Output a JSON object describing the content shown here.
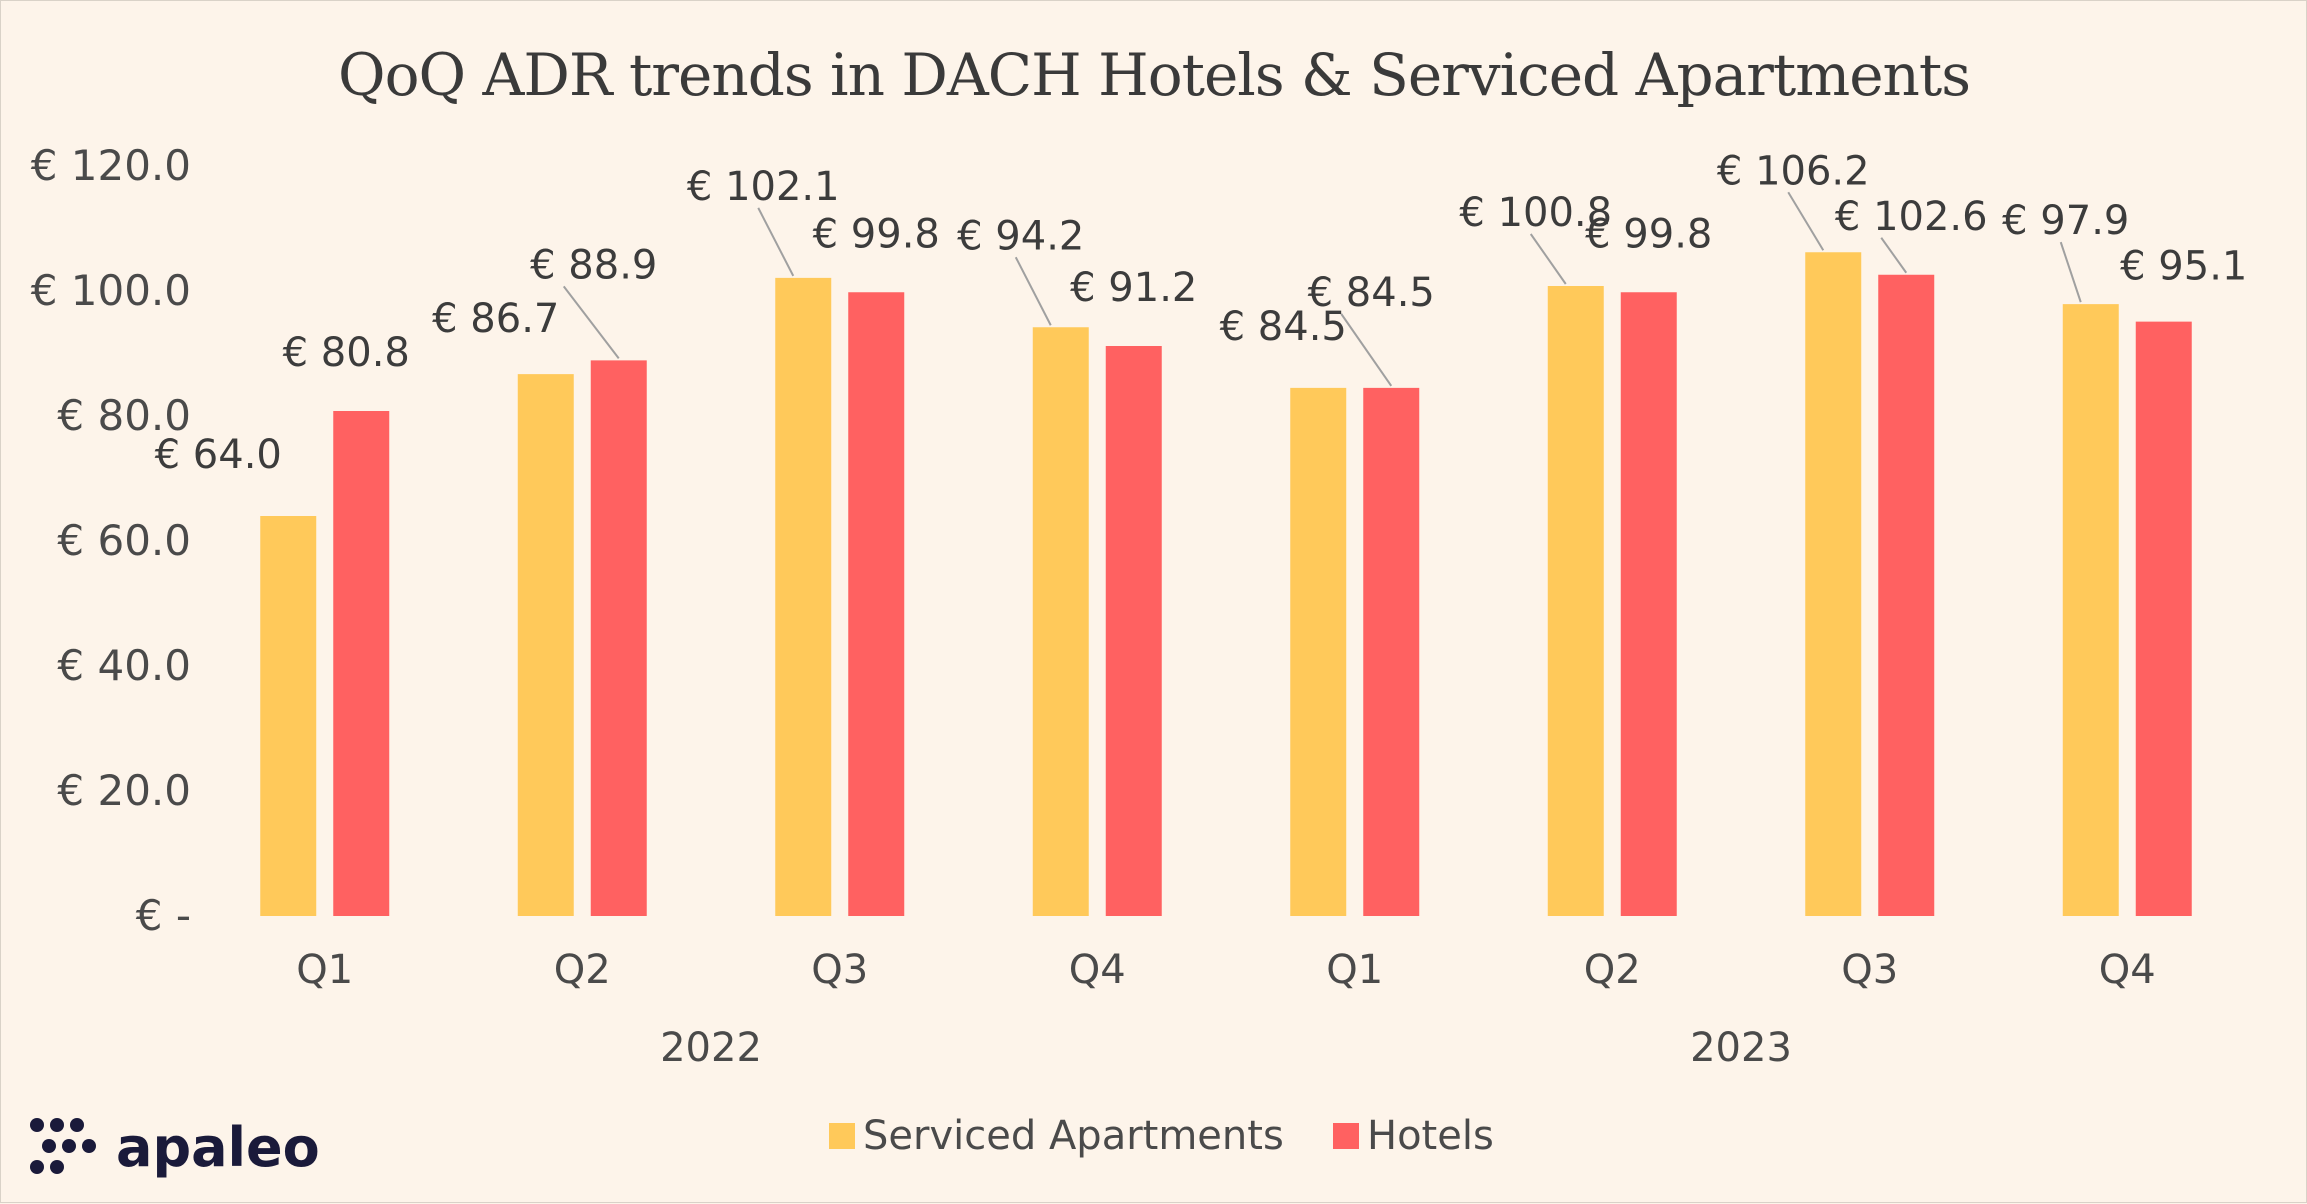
{
  "chart_data": {
    "type": "bar",
    "title": "QoQ ADR trends in DACH Hotels & Serviced Apartments",
    "categories": [
      "Q1",
      "Q2",
      "Q3",
      "Q4",
      "Q1",
      "Q2",
      "Q3",
      "Q4"
    ],
    "groups": [
      {
        "label": "2022",
        "categories": [
          "Q1",
          "Q2",
          "Q3",
          "Q4"
        ]
      },
      {
        "label": "2023",
        "categories": [
          "Q1",
          "Q2",
          "Q3",
          "Q4"
        ]
      }
    ],
    "series": [
      {
        "name": "Serviced Apartments",
        "color": "#ffc95a",
        "values": [
          64.0,
          86.7,
          102.1,
          94.2,
          84.5,
          100.8,
          106.2,
          97.9
        ],
        "labels": [
          "€ 64.0",
          "€ 86.7",
          "€ 102.1",
          "€ 94.2",
          "€ 84.5",
          "€ 100.8",
          "€ 106.2",
          "€ 97.9"
        ]
      },
      {
        "name": "Hotels",
        "color": "#ff6161",
        "values": [
          80.8,
          88.9,
          99.8,
          91.2,
          84.5,
          99.8,
          102.6,
          95.1
        ],
        "labels": [
          "€ 80.8",
          "€ 88.9",
          "€ 99.8",
          "€ 91.2",
          "€ 84.5",
          "€ 99.8",
          "€ 102.6",
          "€ 95.1"
        ]
      }
    ],
    "ylim": [
      0,
      120
    ],
    "yticks": [
      0,
      20,
      40,
      60,
      80,
      100,
      120
    ],
    "ytick_labels": [
      "€ -",
      "€ 20.0",
      "€ 40.0",
      "€ 60.0",
      "€ 80.0",
      "€ 100.0",
      "€ 120.0"
    ],
    "xlabel": "",
    "ylabel": "",
    "grid": false,
    "legend": "bottom-center"
  },
  "logo": {
    "text": "apaleo",
    "color": "#1a1a3a"
  }
}
